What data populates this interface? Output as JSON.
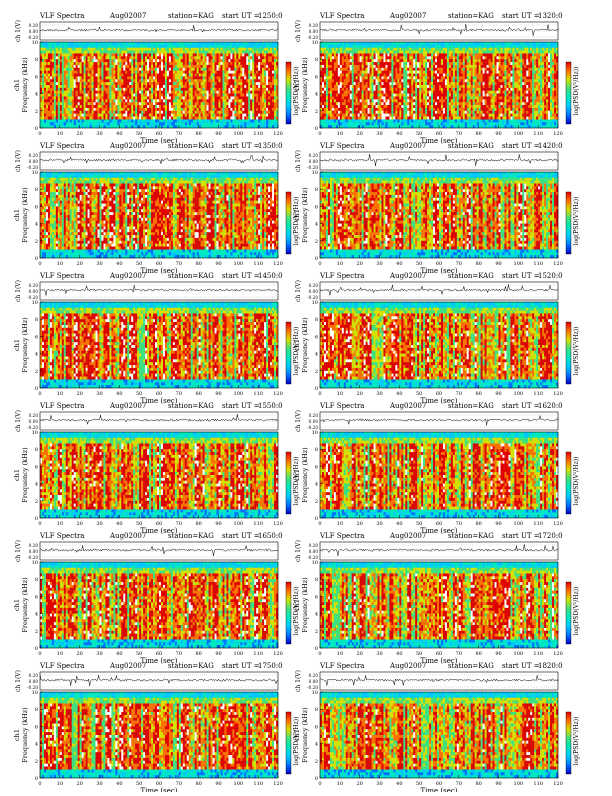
{
  "panel_header": {
    "title": "VLF Spectra",
    "date": "Aug02007",
    "station": "station=KAG",
    "start_label": "start  UT ="
  },
  "axis_labels": {
    "top_ylabel": "ch 1(V)",
    "ylabel": "Frequency (kHz)",
    "ylabel_channel": "ch1",
    "xlabel": "Time (sec)",
    "colorbar_label": "log(PSD(V²/Hz))"
  },
  "panel_times": [
    "1250:0",
    "1320:0",
    "1350:0",
    "1420:0",
    "1450:0",
    "1520:0",
    "1550:0",
    "1620:0",
    "1650:0",
    "1720:0",
    "1750:0",
    "1820:0"
  ],
  "colors": {
    "spectrogram": [
      "#0000c0",
      "#0070ff",
      "#00c8ff",
      "#00e8c0",
      "#40e080",
      "#d8e000",
      "#ff7000",
      "#e00000",
      "#ffffff"
    ]
  },
  "chart_data": {
    "type": "heatmap",
    "layout": "grid-6x2",
    "panel_count": 12,
    "top_trace": {
      "ylabel": "ch 1(V)",
      "yticks": [
        "0.20",
        "0.00",
        "-0.20"
      ],
      "ylim": [
        -0.25,
        0.25
      ]
    },
    "spectrogram": {
      "x_range": [
        0,
        120
      ],
      "y_range": [
        0,
        10
      ],
      "x_ticks": [
        0,
        10,
        20,
        30,
        40,
        50,
        60,
        70,
        80,
        90,
        100,
        110,
        120
      ],
      "y_ticks": [
        0,
        2,
        4,
        6,
        8,
        10
      ],
      "xlabel": "Time (sec)",
      "ylabel": "Frequency (kHz)"
    },
    "colorbar_label": "log(PSD(V²/Hz))"
  }
}
